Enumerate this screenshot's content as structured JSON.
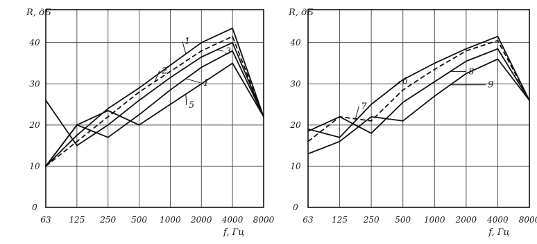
{
  "chart_data": [
    {
      "type": "line",
      "ylabel": "R, дБ",
      "xlabel": "f, Гц",
      "categories": [
        "63",
        "125",
        "250",
        "500",
        "1000",
        "2000",
        "4000",
        "8000"
      ],
      "y_ticks": [
        0,
        10,
        20,
        30,
        40
      ],
      "ylim": [
        0,
        48
      ],
      "grid": true,
      "series": [
        {
          "name": "1",
          "dash": false,
          "values": [
            10,
            17.5,
            24,
            29,
            34.5,
            40,
            43.5,
            22
          ]
        },
        {
          "name": "2",
          "dash": true,
          "values": [
            10,
            16,
            22,
            28,
            33,
            38,
            41.5,
            22
          ]
        },
        {
          "name": "3",
          "dash": false,
          "values": [
            26,
            15,
            20,
            26,
            31.5,
            36.5,
            40,
            22
          ]
        },
        {
          "name": "4",
          "dash": false,
          "values": [
            10,
            20,
            17,
            22.5,
            28.5,
            34,
            38,
            22
          ]
        },
        {
          "name": "5",
          "dash": false,
          "values": [
            10,
            20,
            23.5,
            20,
            25,
            30,
            35,
            22
          ]
        }
      ]
    },
    {
      "type": "line",
      "ylabel": "R, дБ",
      "xlabel": "f, Гц",
      "categories": [
        "63",
        "125",
        "250",
        "500",
        "1000",
        "2000",
        "4000",
        "8000"
      ],
      "y_ticks": [
        0,
        10,
        20,
        30,
        40
      ],
      "ylim": [
        0,
        48
      ],
      "grid": true,
      "series": [
        {
          "name": "6",
          "dash": false,
          "values": [
            19,
            17,
            25,
            31,
            35,
            38.5,
            41.5,
            26
          ]
        },
        {
          "name": "7",
          "dash": true,
          "values": [
            16,
            22,
            21,
            28.5,
            33.5,
            38,
            40.5,
            26
          ]
        },
        {
          "name": "8",
          "dash": false,
          "values": [
            18.5,
            22,
            18,
            25.5,
            30.5,
            35.5,
            38.5,
            26
          ]
        },
        {
          "name": "9",
          "dash": false,
          "values": [
            13,
            16,
            22,
            21,
            27,
            32.5,
            36,
            26
          ]
        }
      ]
    }
  ]
}
